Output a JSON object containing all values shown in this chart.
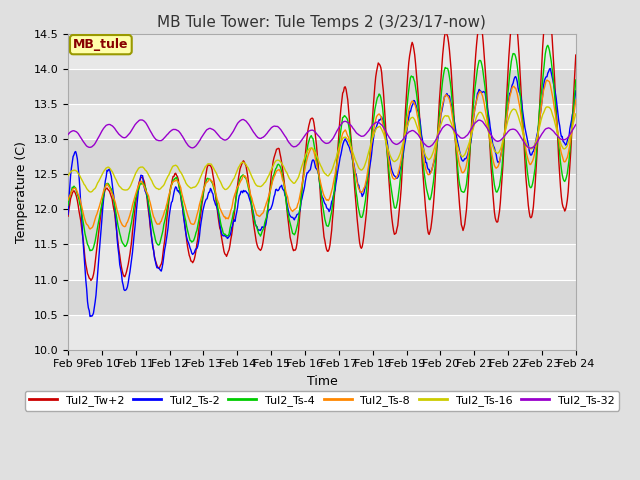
{
  "title": "MB Tule Tower: Tule Temps 2 (3/23/17-now)",
  "xlabel": "Time",
  "ylabel": "Temperature (C)",
  "ylim": [
    10.0,
    14.5
  ],
  "xlim": [
    0,
    15
  ],
  "xtick_labels": [
    "Feb 9",
    "Feb 10",
    "Feb 11",
    "Feb 12",
    "Feb 13",
    "Feb 14",
    "Feb 15",
    "Feb 16",
    "Feb 17",
    "Feb 18",
    "Feb 19",
    "Feb 20",
    "Feb 21",
    "Feb 22",
    "Feb 23",
    "Feb 24"
  ],
  "legend_label": "MB_tule",
  "series_labels": [
    "Tul2_Tw+2",
    "Tul2_Ts-2",
    "Tul2_Ts-4",
    "Tul2_Ts-8",
    "Tul2_Ts-16",
    "Tul2_Ts-32"
  ],
  "series_colors": [
    "#cc0000",
    "#0000ff",
    "#00cc00",
    "#ff8800",
    "#cccc00",
    "#9900cc"
  ],
  "bg_color": "#e0e0e0",
  "plot_bg_light": "#e8e8e8",
  "plot_bg_dark": "#d8d8d8",
  "title_fontsize": 11,
  "axis_fontsize": 9,
  "tick_fontsize": 8
}
